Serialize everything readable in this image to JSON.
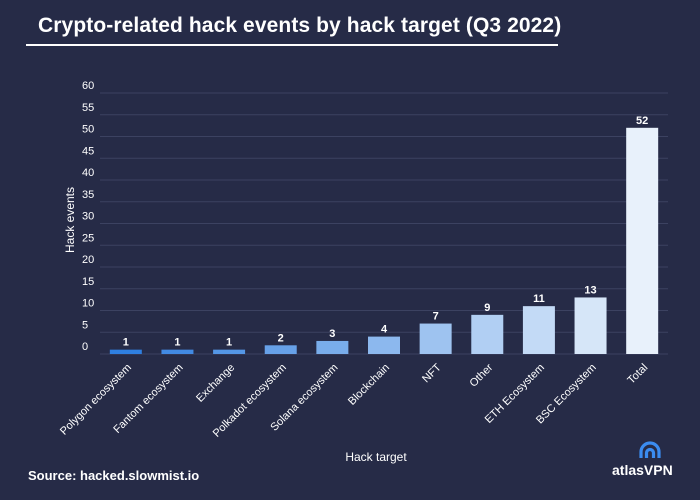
{
  "title": "Crypto-related hack events by hack target (Q3 2022)",
  "source": "Source: hacked.slowmist.io",
  "brand": "atlasVPN",
  "colors": {
    "background": "#262b47",
    "grid": "#3c4261",
    "bar_dark": "#2f7fe0",
    "bar_light": "#e8f1fb",
    "text": "#ffffff"
  },
  "chart_data": {
    "type": "bar",
    "title": "Crypto-related hack events by hack target (Q3 2022)",
    "xlabel": "Hack target",
    "ylabel": "Hack events",
    "ylim": [
      0,
      60
    ],
    "yticks": [
      0,
      5,
      10,
      15,
      20,
      25,
      30,
      35,
      40,
      45,
      50,
      55,
      60
    ],
    "grid": true,
    "categories": [
      "Polygon ecosystem",
      "Fantom ecosystem",
      "Exchange",
      "Polkadot ecosystem",
      "Solana ecosystem",
      "Blockchain",
      "NFT",
      "Other",
      "ETH Ecosystem",
      "BSC Ecosystem",
      "Total"
    ],
    "values": [
      1,
      1,
      1,
      2,
      3,
      4,
      7,
      9,
      11,
      13,
      52
    ]
  }
}
